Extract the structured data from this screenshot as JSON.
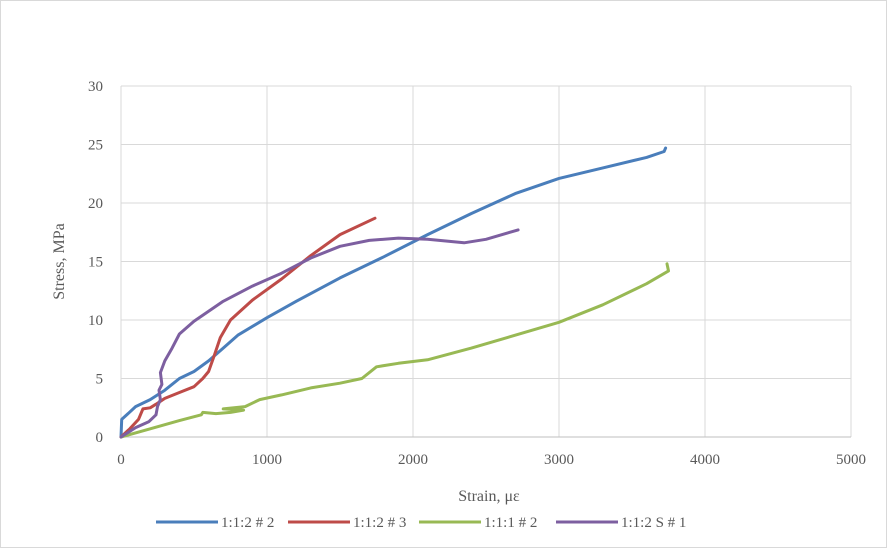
{
  "chart_data": {
    "type": "line",
    "title": "",
    "xlabel": "Strain, με",
    "ylabel": "Stress, MPa",
    "xlim": [
      0,
      5000
    ],
    "ylim": [
      0,
      30
    ],
    "x_ticks": [
      0,
      1000,
      2000,
      3000,
      4000,
      5000
    ],
    "y_ticks": [
      0,
      5,
      10,
      15,
      20,
      25,
      30
    ],
    "grid": "major gridlines",
    "legend_position": "bottom",
    "series": [
      {
        "name": "1:1:2 # 2",
        "color": "#4a7ebb",
        "points": [
          [
            0,
            0
          ],
          [
            5,
            1.5
          ],
          [
            40,
            1.9
          ],
          [
            100,
            2.6
          ],
          [
            200,
            3.2
          ],
          [
            300,
            4.0
          ],
          [
            400,
            5.0
          ],
          [
            500,
            5.6
          ],
          [
            600,
            6.5
          ],
          [
            700,
            7.6
          ],
          [
            800,
            8.7
          ],
          [
            1000,
            10.2
          ],
          [
            1200,
            11.6
          ],
          [
            1500,
            13.6
          ],
          [
            1800,
            15.4
          ],
          [
            2100,
            17.3
          ],
          [
            2400,
            19.1
          ],
          [
            2700,
            20.8
          ],
          [
            3000,
            22.1
          ],
          [
            3300,
            23.0
          ],
          [
            3600,
            23.9
          ],
          [
            3720,
            24.4
          ],
          [
            3730,
            24.7
          ]
        ]
      },
      {
        "name": "1:1:2 # 3",
        "color": "#be4b48",
        "points": [
          [
            0,
            0
          ],
          [
            60,
            0.7
          ],
          [
            120,
            1.5
          ],
          [
            150,
            2.4
          ],
          [
            200,
            2.5
          ],
          [
            240,
            2.8
          ],
          [
            300,
            3.3
          ],
          [
            400,
            3.8
          ],
          [
            500,
            4.3
          ],
          [
            560,
            5.0
          ],
          [
            600,
            5.6
          ],
          [
            640,
            7.0
          ],
          [
            680,
            8.5
          ],
          [
            750,
            10.0
          ],
          [
            900,
            11.7
          ],
          [
            1100,
            13.5
          ],
          [
            1300,
            15.5
          ],
          [
            1500,
            17.3
          ],
          [
            1740,
            18.7
          ]
        ]
      },
      {
        "name": "1:1:1 # 2",
        "color": "#98b954",
        "points": [
          [
            0,
            0
          ],
          [
            200,
            0.7
          ],
          [
            400,
            1.4
          ],
          [
            550,
            1.9
          ],
          [
            560,
            2.1
          ],
          [
            650,
            2.0
          ],
          [
            750,
            2.1
          ],
          [
            840,
            2.3
          ],
          [
            700,
            2.4
          ],
          [
            850,
            2.6
          ],
          [
            950,
            3.2
          ],
          [
            1100,
            3.6
          ],
          [
            1300,
            4.2
          ],
          [
            1500,
            4.6
          ],
          [
            1650,
            5.0
          ],
          [
            1750,
            6.0
          ],
          [
            1900,
            6.3
          ],
          [
            2100,
            6.6
          ],
          [
            2400,
            7.6
          ],
          [
            2700,
            8.7
          ],
          [
            3000,
            9.8
          ],
          [
            3300,
            11.3
          ],
          [
            3600,
            13.1
          ],
          [
            3750,
            14.2
          ],
          [
            3740,
            14.8
          ]
        ]
      },
      {
        "name": "1:1:2 S # 1",
        "color": "#7d5fa0",
        "points": [
          [
            0,
            0
          ],
          [
            100,
            0.8
          ],
          [
            190,
            1.3
          ],
          [
            240,
            1.9
          ],
          [
            250,
            2.6
          ],
          [
            270,
            3.2
          ],
          [
            260,
            4.0
          ],
          [
            280,
            4.5
          ],
          [
            270,
            5.5
          ],
          [
            300,
            6.5
          ],
          [
            350,
            7.6
          ],
          [
            400,
            8.8
          ],
          [
            500,
            9.9
          ],
          [
            700,
            11.6
          ],
          [
            900,
            12.9
          ],
          [
            1100,
            14.0
          ],
          [
            1300,
            15.3
          ],
          [
            1500,
            16.3
          ],
          [
            1700,
            16.8
          ],
          [
            1900,
            17.0
          ],
          [
            2100,
            16.9
          ],
          [
            2350,
            16.6
          ],
          [
            2500,
            16.9
          ],
          [
            2720,
            17.7
          ]
        ]
      }
    ]
  }
}
